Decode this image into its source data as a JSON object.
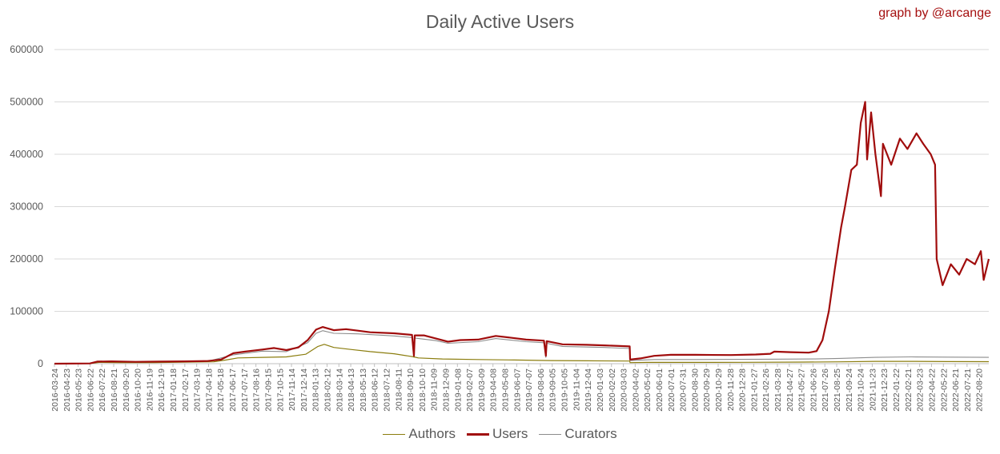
{
  "chart_data": {
    "type": "line",
    "title": "Daily Active Users",
    "credit": "graph by @arcange",
    "ylim": [
      0,
      600000
    ],
    "yticks": [
      0,
      100000,
      200000,
      300000,
      400000,
      500000,
      600000
    ],
    "grid": true,
    "legend_position": "bottom",
    "x_range": [
      "2016-03-24",
      "2022-09-14"
    ],
    "x_tick_labels": [
      "2016-03-24",
      "2016-04-23",
      "2016-05-23",
      "2016-06-22",
      "2016-07-22",
      "2016-08-21",
      "2016-09-20",
      "2016-10-20",
      "2016-11-19",
      "2016-12-19",
      "2017-01-18",
      "2017-02-17",
      "2017-03-19",
      "2017-04-18",
      "2017-05-18",
      "2017-06-17",
      "2017-07-17",
      "2017-08-16",
      "2017-09-15",
      "2017-10-15",
      "2017-11-14",
      "2017-12-14",
      "2018-01-13",
      "2018-02-12",
      "2018-03-14",
      "2018-04-13",
      "2018-05-13",
      "2018-06-12",
      "2018-07-12",
      "2018-08-11",
      "2018-09-10",
      "2018-10-10",
      "2018-11-09",
      "2018-12-09",
      "2019-01-08",
      "2019-02-07",
      "2019-03-09",
      "2019-04-08",
      "2019-05-08",
      "2019-06-07",
      "2019-07-07",
      "2019-08-06",
      "2019-09-05",
      "2019-10-05",
      "2019-11-04",
      "2019-12-04",
      "2020-01-03",
      "2020-02-02",
      "2020-03-03",
      "2020-04-02",
      "2020-05-02",
      "2020-06-01",
      "2020-07-01",
      "2020-07-31",
      "2020-08-30",
      "2020-09-29",
      "2020-10-29",
      "2020-11-28",
      "2020-12-28",
      "2021-01-27",
      "2021-02-26",
      "2021-03-28",
      "2021-04-27",
      "2021-05-27",
      "2021-06-26",
      "2021-07-26",
      "2021-08-25",
      "2021-09-24",
      "2021-10-24",
      "2021-11-23",
      "2021-12-23",
      "2022-01-22",
      "2022-02-21",
      "2022-03-23",
      "2022-04-22",
      "2022-05-22",
      "2022-06-21",
      "2022-07-21",
      "2022-08-20"
    ],
    "series": [
      {
        "name": "Authors",
        "color": "#8b7d0e",
        "points": [
          [
            "2016-03-24",
            0
          ],
          [
            "2016-06-22",
            300
          ],
          [
            "2016-07-15",
            2500
          ],
          [
            "2016-09-01",
            2000
          ],
          [
            "2016-12-01",
            2200
          ],
          [
            "2017-03-01",
            3000
          ],
          [
            "2017-05-01",
            3500
          ],
          [
            "2017-06-01",
            7000
          ],
          [
            "2017-07-01",
            11000
          ],
          [
            "2017-09-01",
            12000
          ],
          [
            "2017-11-01",
            13000
          ],
          [
            "2017-12-20",
            18000
          ],
          [
            "2018-01-20",
            33000
          ],
          [
            "2018-02-05",
            37000
          ],
          [
            "2018-03-01",
            31000
          ],
          [
            "2018-04-15",
            27000
          ],
          [
            "2018-06-01",
            23000
          ],
          [
            "2018-08-01",
            19000
          ],
          [
            "2018-09-20",
            13000
          ],
          [
            "2018-10-01",
            11000
          ],
          [
            "2018-12-01",
            9000
          ],
          [
            "2019-03-01",
            8000
          ],
          [
            "2019-06-01",
            7000
          ],
          [
            "2019-09-01",
            6000
          ],
          [
            "2019-12-01",
            5500
          ],
          [
            "2020-03-19",
            5000
          ],
          [
            "2020-03-20",
            2000
          ],
          [
            "2020-05-01",
            2500
          ],
          [
            "2020-09-01",
            2500
          ],
          [
            "2021-01-01",
            2600
          ],
          [
            "2021-06-01",
            3000
          ],
          [
            "2021-09-01",
            3500
          ],
          [
            "2021-12-01",
            4500
          ],
          [
            "2022-03-01",
            4500
          ],
          [
            "2022-06-01",
            4000
          ],
          [
            "2022-09-14",
            3800
          ]
        ]
      },
      {
        "name": "Users",
        "color": "#a00c0c",
        "points": [
          [
            "2016-03-24",
            0
          ],
          [
            "2016-06-22",
            500
          ],
          [
            "2016-07-10",
            4000
          ],
          [
            "2016-08-15",
            4500
          ],
          [
            "2016-10-15",
            3500
          ],
          [
            "2016-12-15",
            4000
          ],
          [
            "2017-02-15",
            4500
          ],
          [
            "2017-04-15",
            5000
          ],
          [
            "2017-05-20",
            8000
          ],
          [
            "2017-06-20",
            20000
          ],
          [
            "2017-07-20",
            23000
          ],
          [
            "2017-09-01",
            27000
          ],
          [
            "2017-10-01",
            30000
          ],
          [
            "2017-11-01",
            26000
          ],
          [
            "2017-12-01",
            31000
          ],
          [
            "2017-12-25",
            45000
          ],
          [
            "2018-01-15",
            65000
          ],
          [
            "2018-02-01",
            70000
          ],
          [
            "2018-03-01",
            64000
          ],
          [
            "2018-04-01",
            66000
          ],
          [
            "2018-05-01",
            63000
          ],
          [
            "2018-06-01",
            60000
          ],
          [
            "2018-08-01",
            58000
          ],
          [
            "2018-09-15",
            55000
          ],
          [
            "2018-09-20",
            15000
          ],
          [
            "2018-09-22",
            54000
          ],
          [
            "2018-10-15",
            54000
          ],
          [
            "2018-11-15",
            48000
          ],
          [
            "2018-12-15",
            42000
          ],
          [
            "2019-01-15",
            45000
          ],
          [
            "2019-03-01",
            46000
          ],
          [
            "2019-04-15",
            53000
          ],
          [
            "2019-05-20",
            50000
          ],
          [
            "2019-07-01",
            46000
          ],
          [
            "2019-08-15",
            44000
          ],
          [
            "2019-08-20",
            15000
          ],
          [
            "2019-08-22",
            43000
          ],
          [
            "2019-10-01",
            37000
          ],
          [
            "2019-12-01",
            36000
          ],
          [
            "2020-01-15",
            35000
          ],
          [
            "2020-03-19",
            33000
          ],
          [
            "2020-03-20",
            8000
          ],
          [
            "2020-04-15",
            10000
          ],
          [
            "2020-05-20",
            15000
          ],
          [
            "2020-07-01",
            17000
          ],
          [
            "2020-09-01",
            17000
          ],
          [
            "2020-12-01",
            16500
          ],
          [
            "2021-02-01",
            17500
          ],
          [
            "2021-03-10",
            19000
          ],
          [
            "2021-03-20",
            23000
          ],
          [
            "2021-05-01",
            22000
          ],
          [
            "2021-06-15",
            21000
          ],
          [
            "2021-07-05",
            24000
          ],
          [
            "2021-07-20",
            45000
          ],
          [
            "2021-08-05",
            100000
          ],
          [
            "2021-08-20",
            180000
          ],
          [
            "2021-09-05",
            260000
          ],
          [
            "2021-09-15",
            300000
          ],
          [
            "2021-10-01",
            370000
          ],
          [
            "2021-10-15",
            380000
          ],
          [
            "2021-10-25",
            460000
          ],
          [
            "2021-11-05",
            500000
          ],
          [
            "2021-11-10",
            390000
          ],
          [
            "2021-11-20",
            480000
          ],
          [
            "2021-12-01",
            400000
          ],
          [
            "2021-12-15",
            320000
          ],
          [
            "2021-12-20",
            420000
          ],
          [
            "2022-01-10",
            380000
          ],
          [
            "2022-02-01",
            430000
          ],
          [
            "2022-02-20",
            410000
          ],
          [
            "2022-03-15",
            440000
          ],
          [
            "2022-04-01",
            420000
          ],
          [
            "2022-04-20",
            400000
          ],
          [
            "2022-05-01",
            380000
          ],
          [
            "2022-05-05",
            200000
          ],
          [
            "2022-05-20",
            150000
          ],
          [
            "2022-06-10",
            190000
          ],
          [
            "2022-07-01",
            170000
          ],
          [
            "2022-07-20",
            200000
          ],
          [
            "2022-08-10",
            190000
          ],
          [
            "2022-08-25",
            215000
          ],
          [
            "2022-09-01",
            160000
          ],
          [
            "2022-09-14",
            200000
          ]
        ]
      },
      {
        "name": "Curators",
        "color": "#8c8c8c",
        "points": [
          [
            "2016-03-24",
            0
          ],
          [
            "2016-06-22",
            400
          ],
          [
            "2016-07-10",
            3500
          ],
          [
            "2016-10-15",
            3000
          ],
          [
            "2017-02-15",
            3800
          ],
          [
            "2017-04-15",
            4500
          ],
          [
            "2017-06-20",
            17000
          ],
          [
            "2017-09-01",
            24000
          ],
          [
            "2017-11-01",
            23000
          ],
          [
            "2017-12-25",
            40000
          ],
          [
            "2018-01-15",
            58000
          ],
          [
            "2018-02-01",
            63000
          ],
          [
            "2018-03-01",
            58000
          ],
          [
            "2018-05-01",
            57000
          ],
          [
            "2018-08-01",
            53000
          ],
          [
            "2018-09-15",
            50000
          ],
          [
            "2018-09-20",
            12000
          ],
          [
            "2018-09-22",
            49000
          ],
          [
            "2018-11-15",
            44000
          ],
          [
            "2018-12-15",
            39000
          ],
          [
            "2019-03-01",
            42000
          ],
          [
            "2019-04-15",
            48000
          ],
          [
            "2019-07-01",
            42000
          ],
          [
            "2019-08-15",
            40000
          ],
          [
            "2019-08-20",
            12000
          ],
          [
            "2019-08-22",
            39000
          ],
          [
            "2019-10-01",
            33000
          ],
          [
            "2020-01-15",
            31000
          ],
          [
            "2020-03-19",
            29000
          ],
          [
            "2020-03-20",
            6000
          ],
          [
            "2020-05-20",
            8000
          ],
          [
            "2020-09-01",
            8000
          ],
          [
            "2021-03-01",
            8500
          ],
          [
            "2021-07-01",
            9000
          ],
          [
            "2021-09-01",
            10000
          ],
          [
            "2021-12-01",
            12000
          ],
          [
            "2022-03-01",
            13000
          ],
          [
            "2022-06-01",
            12500
          ],
          [
            "2022-09-14",
            12000
          ]
        ]
      }
    ]
  }
}
